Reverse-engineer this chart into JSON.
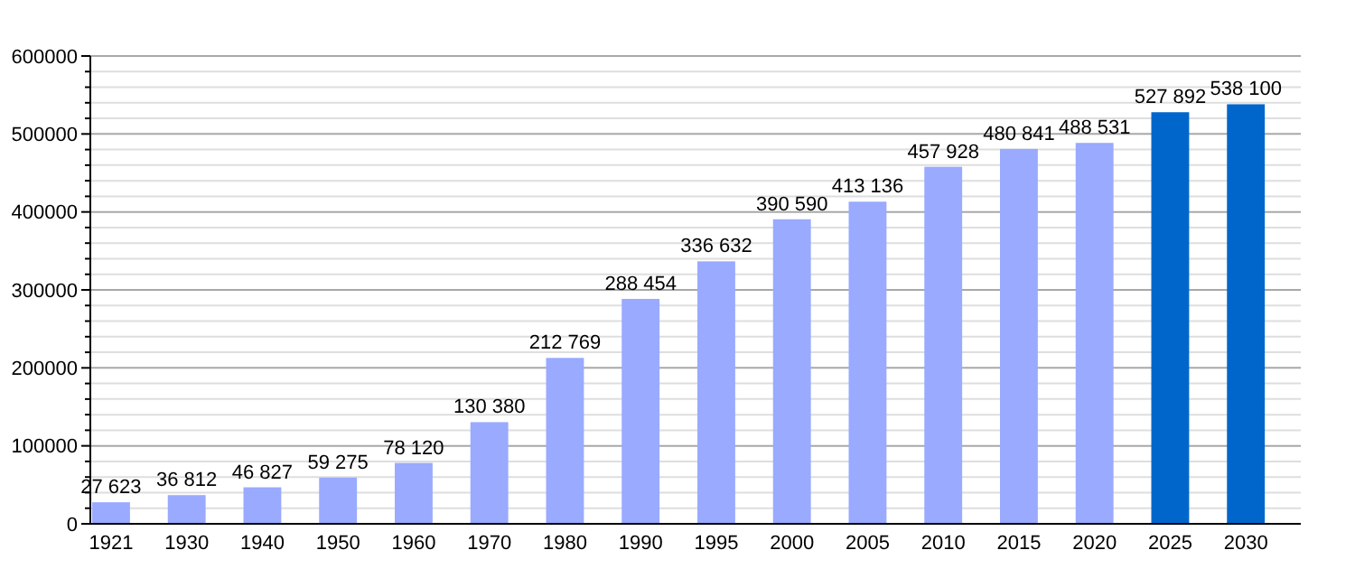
{
  "chart_data": {
    "type": "bar",
    "categories": [
      "1921",
      "1930",
      "1940",
      "1950",
      "1960",
      "1970",
      "1980",
      "1990",
      "1995",
      "2000",
      "2005",
      "2010",
      "2015",
      "2020",
      "2025",
      "2030"
    ],
    "values": [
      27623,
      36812,
      46827,
      59275,
      78120,
      130380,
      212769,
      288454,
      336632,
      390590,
      413136,
      457928,
      480841,
      488531,
      527892,
      538100
    ],
    "colors": [
      "#99aaff",
      "#99aaff",
      "#99aaff",
      "#99aaff",
      "#99aaff",
      "#99aaff",
      "#99aaff",
      "#99aaff",
      "#99aaff",
      "#99aaff",
      "#99aaff",
      "#99aaff",
      "#99aaff",
      "#99aaff",
      "#0066cc",
      "#0066cc"
    ],
    "value_labels": [
      "27 623",
      "36 812",
      "46 827",
      "59 275",
      "78 120",
      "130 380",
      "212 769",
      "288 454",
      "336 632",
      "390 590",
      "413 136",
      "457 928",
      "480 841",
      "488 531",
      "527 892",
      "538 100"
    ],
    "ylim": [
      0,
      600000
    ],
    "yticks": [
      0,
      {
        "value": 20000,
        "label": null
      },
      {
        "value": 40000,
        "label": null
      },
      {
        "value": 60000,
        "label": null
      },
      {
        "value": 80000,
        "label": null
      },
      100000,
      {
        "value": 120000,
        "label": null
      },
      {
        "value": 140000,
        "label": null
      },
      {
        "value": 160000,
        "label": null
      },
      {
        "value": 180000,
        "label": null
      },
      200000,
      {
        "value": 220000,
        "label": null
      },
      {
        "value": 240000,
        "label": null
      },
      {
        "value": 260000,
        "label": null
      },
      {
        "value": 280000,
        "label": null
      },
      300000,
      {
        "value": 320000,
        "label": null
      },
      {
        "value": 340000,
        "label": null
      },
      {
        "value": 360000,
        "label": null
      },
      {
        "value": 380000,
        "label": null
      },
      400000,
      {
        "value": 420000,
        "label": null
      },
      {
        "value": 440000,
        "label": null
      },
      {
        "value": 460000,
        "label": null
      },
      {
        "value": 480000,
        "label": null
      },
      500000,
      {
        "value": 520000,
        "label": null
      },
      {
        "value": 540000,
        "label": null
      },
      {
        "value": 560000,
        "label": null
      },
      {
        "value": 580000,
        "label": null
      },
      600000
    ],
    "grid": "y"
  }
}
